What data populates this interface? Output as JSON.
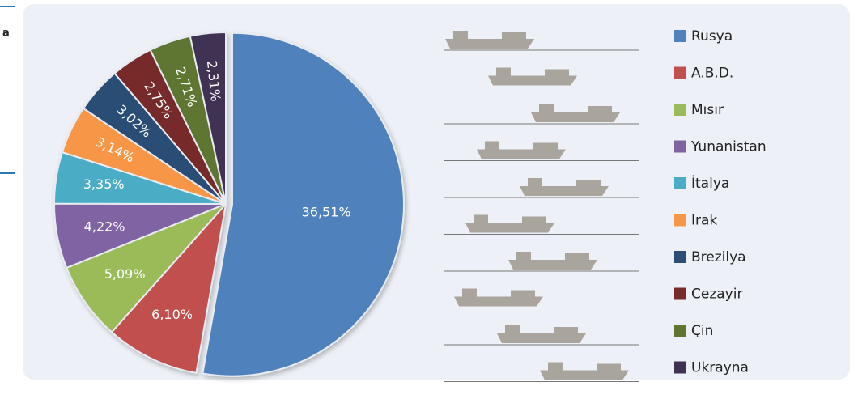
{
  "side_text": "a",
  "chart_data": {
    "type": "pie",
    "categories": [
      "Rusya",
      "A.B.D.",
      "Mısır",
      "Yunanistan",
      "İtalya",
      "Irak",
      "Brezilya",
      "Cezayir",
      "Çin",
      "Ukrayna"
    ],
    "values": [
      36.51,
      6.1,
      5.09,
      4.22,
      3.35,
      3.14,
      3.02,
      2.75,
      2.71,
      2.31
    ],
    "value_labels": [
      "36,51%",
      "6,10%",
      "5,09%",
      "4,22%",
      "3,35%",
      "3,14%",
      "3,02%",
      "2,75%",
      "2,71%",
      "2,31%"
    ],
    "colors": [
      "#4f81bd",
      "#c0504d",
      "#9bbb59",
      "#8064a2",
      "#4bacc6",
      "#f79646",
      "#2c4d75",
      "#772c2a",
      "#5f7530",
      "#403152"
    ],
    "legend": "right"
  }
}
